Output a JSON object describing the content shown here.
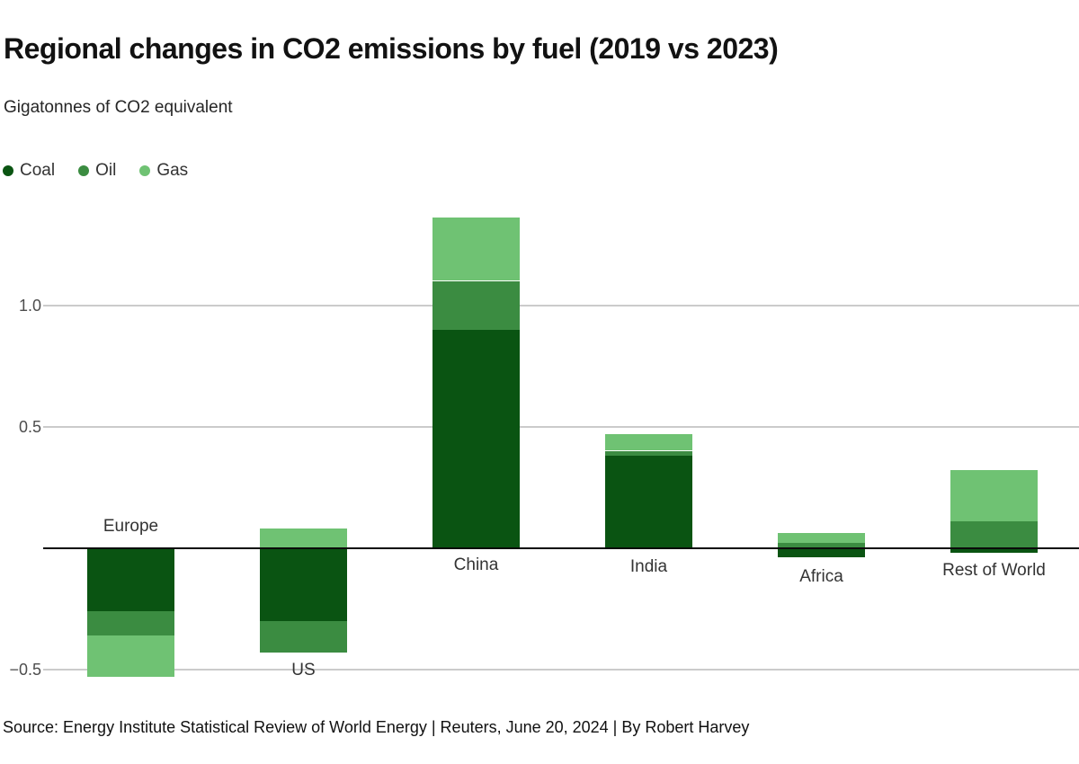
{
  "header": {
    "title": "Regional changes in CO2 emissions by fuel (2019 vs 2023)",
    "subtitle": "Gigatonnes of CO2 equivalent"
  },
  "legend": [
    {
      "label": "Coal",
      "color": "#0a5412"
    },
    {
      "label": "Oil",
      "color": "#3b8c41"
    },
    {
      "label": "Gas",
      "color": "#6fc273"
    }
  ],
  "colors": {
    "coal": "#0a5412",
    "oil": "#3b8c41",
    "gas": "#6fc273",
    "gridline": "#cbcbcb",
    "zero_line": "#0a0a0a"
  },
  "chart_data": {
    "type": "bar",
    "stacked": true,
    "title": "Regional changes in CO2 emissions by fuel (2019 vs 2023)",
    "subtitle_unit": "Gigatonnes of CO2 equivalent",
    "categories": [
      "Europe",
      "US",
      "China",
      "India",
      "Africa",
      "Rest of World"
    ],
    "series": [
      {
        "name": "Coal",
        "color": "#0a5412",
        "values": [
          -0.26,
          -0.3,
          0.9,
          0.38,
          -0.04,
          -0.02
        ]
      },
      {
        "name": "Oil",
        "color": "#3b8c41",
        "values": [
          -0.1,
          -0.13,
          0.2,
          0.02,
          0.02,
          0.11
        ]
      },
      {
        "name": "Gas",
        "color": "#6fc273",
        "values": [
          -0.17,
          0.08,
          0.26,
          0.07,
          0.04,
          0.21
        ]
      }
    ],
    "yticks": [
      {
        "value": 1.0,
        "label": "1.0"
      },
      {
        "value": 0.5,
        "label": "0.5"
      },
      {
        "value": -0.5,
        "label": "−0.5"
      }
    ],
    "ylim": [
      -0.6,
      1.45
    ],
    "xlabel": "",
    "ylabel": "Gigatonnes of CO2 equivalent",
    "grid": true,
    "legend_position": "top-left"
  },
  "footer": {
    "source": "Source: Energy Institute Statistical Review of World Energy | Reuters, June 20, 2024 | By Robert Harvey"
  }
}
